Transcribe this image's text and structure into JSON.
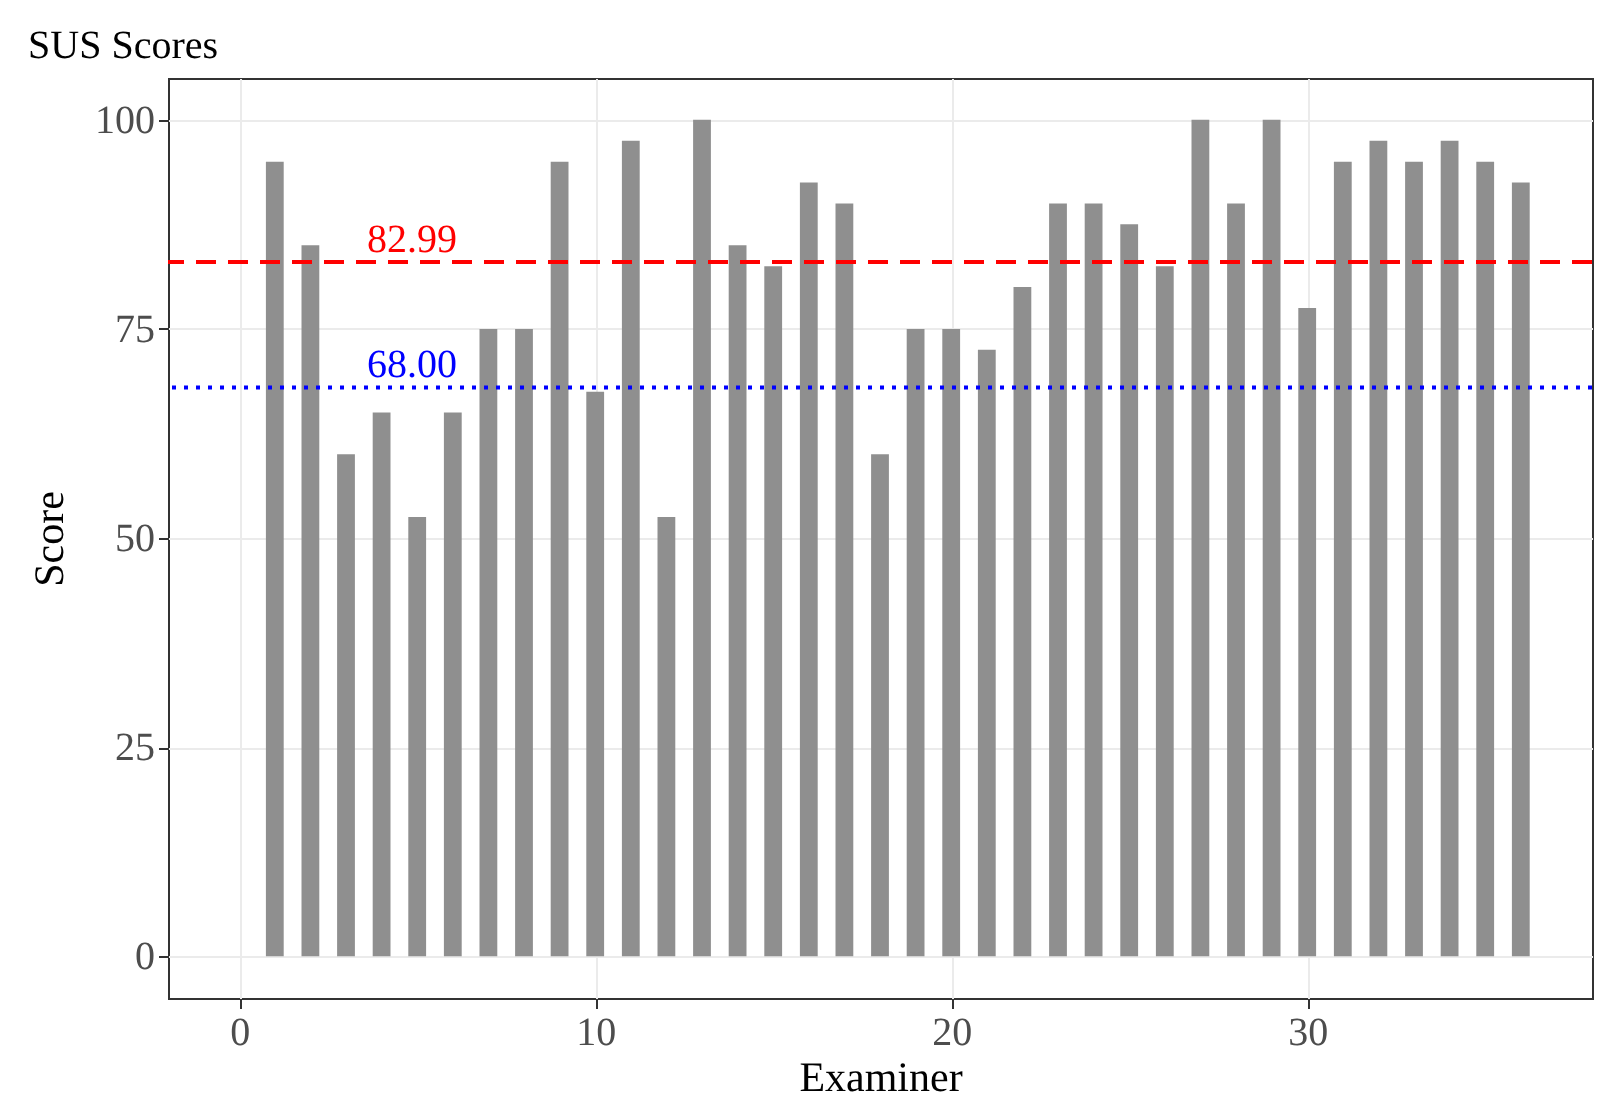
{
  "chart_data": {
    "type": "bar",
    "title": "SUS Scores",
    "xlabel": "Examiner",
    "ylabel": "Score",
    "x": [
      1,
      2,
      3,
      4,
      5,
      6,
      7,
      8,
      9,
      10,
      11,
      12,
      13,
      14,
      15,
      16,
      17,
      18,
      19,
      20,
      21,
      22,
      23,
      24,
      25,
      26,
      27,
      28,
      29,
      30,
      31,
      32,
      33,
      34,
      35,
      36
    ],
    "values": [
      95,
      85,
      60,
      65,
      52.5,
      65,
      75,
      75,
      95,
      67.5,
      97.5,
      52.5,
      100,
      85,
      82.5,
      92.5,
      90,
      60,
      75,
      75,
      72.5,
      80,
      90,
      90,
      87.5,
      82.5,
      100,
      90,
      100,
      77.5,
      95,
      97.5,
      95,
      97.5,
      95,
      92.5
    ],
    "color": "#8f8f8f",
    "xlim": [
      -2,
      38
    ],
    "xticks": [
      0,
      10,
      20,
      30
    ],
    "ylim": [
      -5,
      105
    ],
    "yticks": [
      0,
      25,
      50,
      75,
      100
    ],
    "grid": true,
    "ref_lines": [
      {
        "axis": "y",
        "value": 82.99,
        "label": "82.99",
        "color": "#ff0000",
        "line_style": "dashed"
      },
      {
        "axis": "y",
        "value": 68,
        "label": "68.00",
        "color": "#0000ff",
        "line_style": "dotted"
      }
    ]
  }
}
